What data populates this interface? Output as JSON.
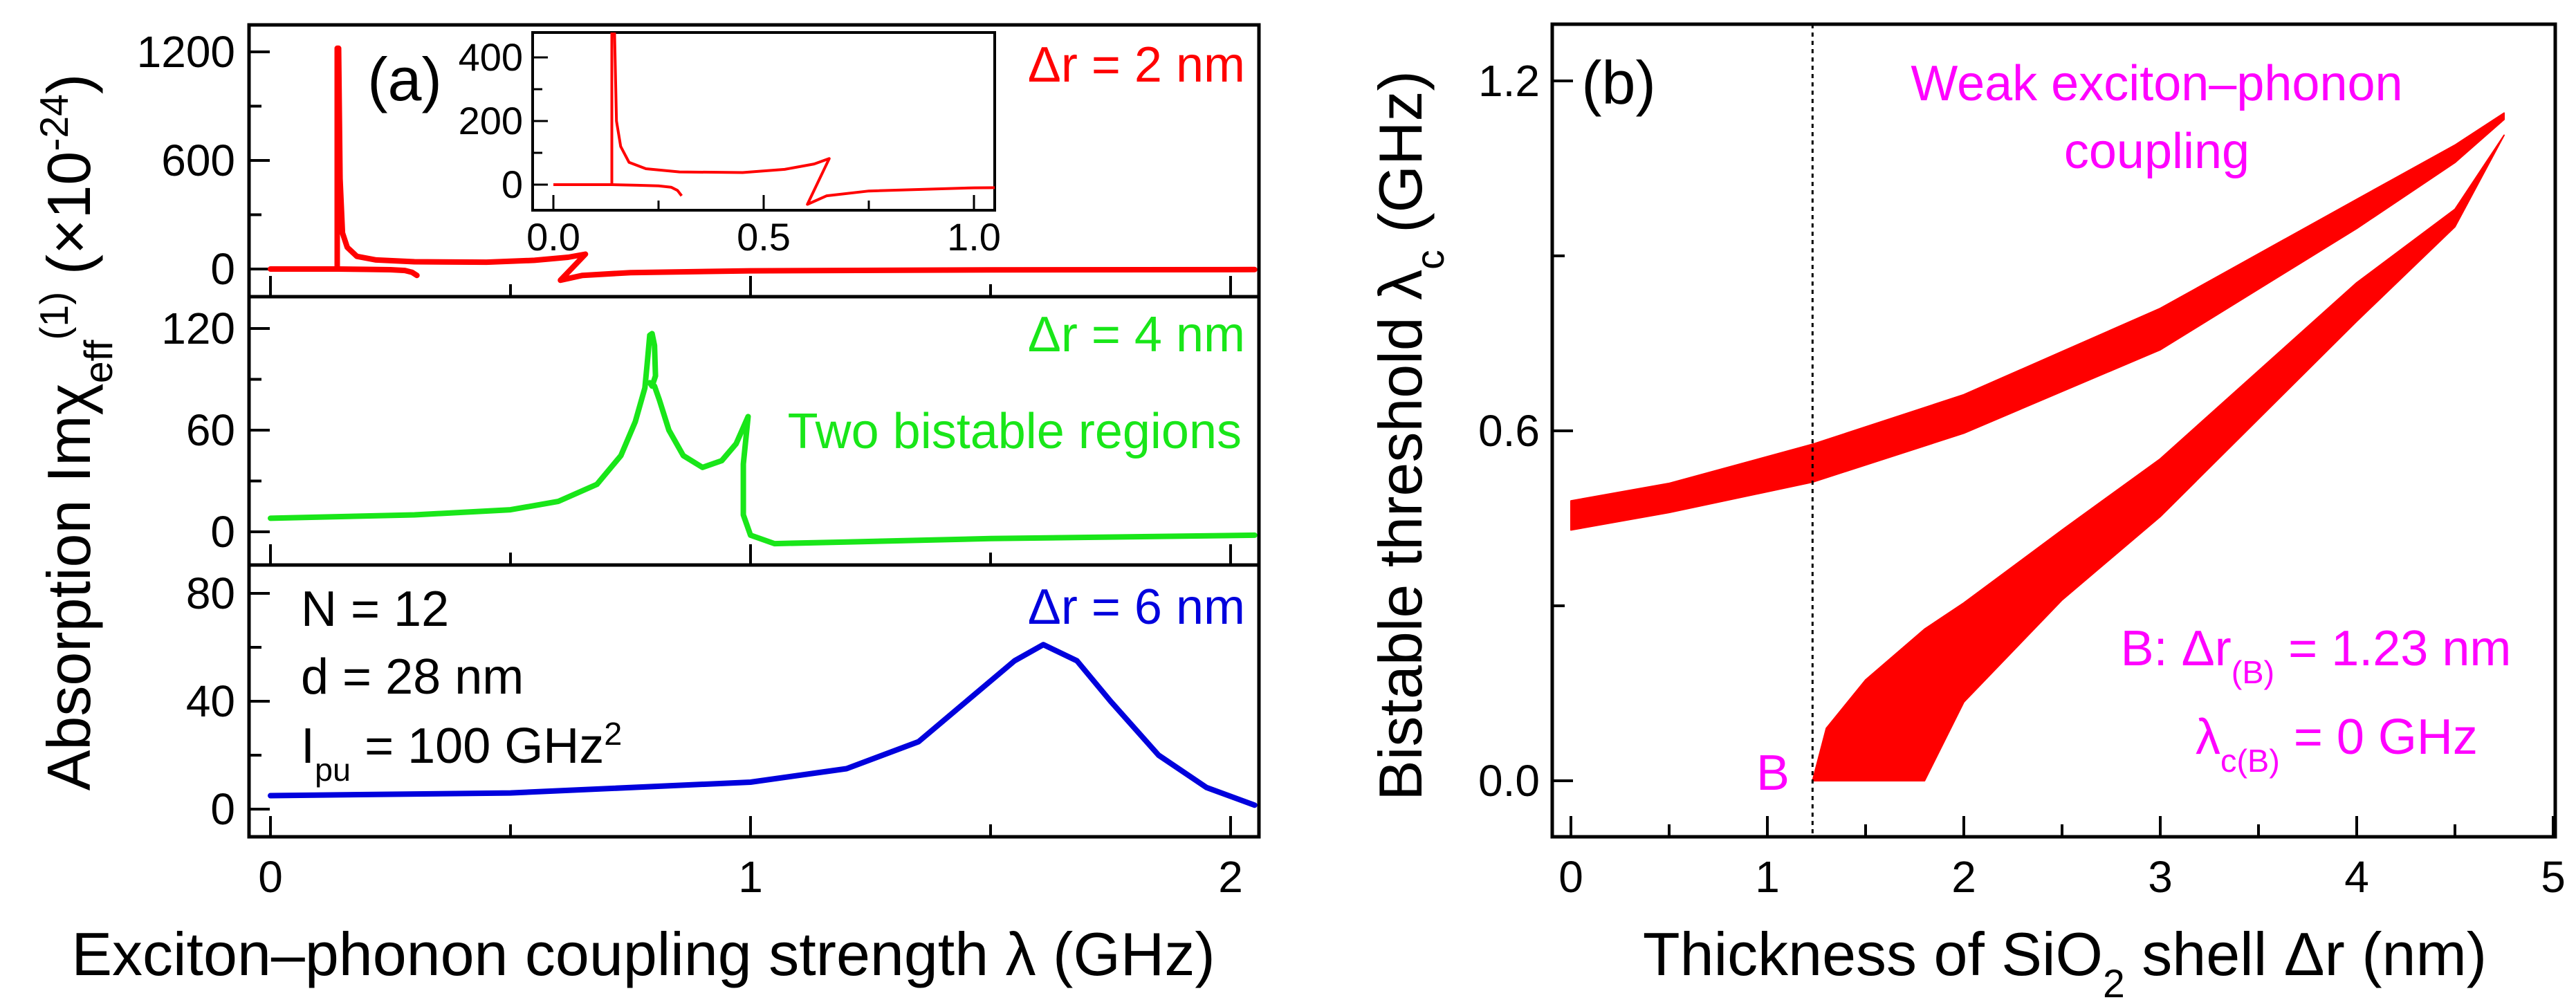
{
  "chart_data": [
    {
      "panel_label": "(a)",
      "type": "line",
      "xlabel": "Exciton–phonon coupling strength λ (GHz)",
      "ylabel": {
        "pre": "Absorption Im",
        "chi": "χ",
        "sub": "eff",
        "sup": "(1)",
        "mid": " (×10",
        "exp": "-24",
        "post": ")"
      },
      "xlim": [
        -0.05,
        2.05
      ],
      "xticks": [
        0,
        1,
        2
      ],
      "xtick_labels": [
        "0",
        "1",
        "2"
      ],
      "subplots": [
        {
          "label": "Δr = 2 nm",
          "color": "#ff0000",
          "ylim": [
            -180,
            1350
          ],
          "yticks": [
            0,
            600,
            1200
          ],
          "ytick_labels": [
            "0",
            "600",
            "1200"
          ],
          "series": [
            {
              "name": "lower branch",
              "x": [
                0,
                0.139,
                0.2,
                0.25,
                0.28,
                0.295,
                0.305
              ],
              "y": [
                0,
                0,
                -2,
                -4,
                -8,
                -18,
                -35
              ]
            },
            {
              "name": "upper branch",
              "x": [
                0.139,
                0.139,
                0.142,
                0.145,
                0.15,
                0.16,
                0.18,
                0.22,
                0.3,
                0.45,
                0.55,
                0.62,
                0.656,
                0.604,
                0.65,
                0.75,
                1.0,
                1.5,
                2.05
              ],
              "y": [
                0,
                1220,
                1220,
                500,
                200,
                120,
                70,
                50,
                40,
                38,
                48,
                65,
                82,
                -62,
                -35,
                -20,
                -10,
                -5,
                -3
              ]
            }
          ],
          "inset": {
            "xlim": [
              -0.05,
              1.05
            ],
            "ylim": [
              -80,
              460
            ],
            "xticks": [
              0,
              0.5,
              1.0
            ],
            "xtick_labels": [
              "0.0",
              "0.5",
              "1.0"
            ],
            "yticks": [
              0,
              200,
              400
            ],
            "ytick_labels": [
              "0",
              "200",
              "400"
            ]
          }
        },
        {
          "label": "Δr = 4 nm",
          "color": "#19e619",
          "note": "Two bistable regions",
          "ylim": [
            -20,
            140
          ],
          "yticks": [
            0,
            60,
            120
          ],
          "ytick_labels": [
            "0",
            "60",
            "120"
          ],
          "series": [
            {
              "name": "Δr = 4 nm",
              "x": [
                0,
                0.3,
                0.5,
                0.6,
                0.68,
                0.73,
                0.76,
                0.78,
                0.785,
                0.79,
                0.795,
                0.8,
                0.802,
                0.795,
                0.79,
                0.8,
                0.81,
                0.83,
                0.86,
                0.9,
                0.94,
                0.97,
                0.995,
                0.985,
                0.985,
                1.0,
                1.05,
                1.2,
                1.5,
                2.05
              ],
              "y": [
                8,
                10,
                13,
                18,
                28,
                45,
                65,
                85,
                100,
                116,
                117,
                110,
                92,
                86,
                88,
                86,
                78,
                60,
                45,
                38,
                42,
                52,
                68,
                40,
                10,
                -2,
                -7,
                -6,
                -4,
                -2
              ]
            }
          ]
        },
        {
          "label": "Δr = 6 nm",
          "color": "#0000dd",
          "ylim": [
            -10,
            92
          ],
          "yticks": [
            0,
            40,
            80
          ],
          "ytick_labels": [
            "0",
            "40",
            "80"
          ],
          "params": [
            "N = 12",
            "d = 28 nm"
          ],
          "param_ipu": {
            "pre": "I",
            "sub": "pu",
            "mid": " = 100 GHz",
            "sup": "2"
          },
          "series": [
            {
              "name": "Δr = 6 nm",
              "x": [
                0,
                0.5,
                1.0,
                1.2,
                1.35,
                1.45,
                1.55,
                1.61,
                1.68,
                1.75,
                1.85,
                1.95,
                2.05
              ],
              "y": [
                5,
                6,
                10,
                15,
                25,
                40,
                55,
                61,
                55,
                40,
                20,
                8,
                1.5
              ]
            }
          ]
        }
      ]
    },
    {
      "panel_label": "(b)",
      "type": "area",
      "xlabel": {
        "pre": "Thickness of SiO",
        "sub": "2",
        "post": " shell Δr (nm)"
      },
      "ylabel": {
        "pre": "Bistable threshold λ",
        "sub": "c",
        "post": " (GHz)"
      },
      "xlim": [
        -0.1,
        5.05
      ],
      "ylim": [
        -0.1,
        1.3
      ],
      "xticks": [
        0,
        1,
        2,
        3,
        4,
        5
      ],
      "xtick_labels": [
        "0",
        "1",
        "2",
        "3",
        "4",
        "5"
      ],
      "yticks": [
        0,
        0.6,
        1.2
      ],
      "ytick_labels": [
        "0.0",
        "0.6",
        "1.2"
      ],
      "color": "#ff0000",
      "annotation_color": "#ff00ff",
      "vline_x": 1.23,
      "bands": [
        {
          "name": "upper band",
          "x": [
            0,
            0.5,
            1.23,
            2,
            3,
            4,
            4.5,
            4.75
          ],
          "upper": [
            0.48,
            0.51,
            0.577,
            0.662,
            0.81,
            0.997,
            1.09,
            1.145
          ],
          "lower": [
            0.43,
            0.46,
            0.512,
            0.596,
            0.739,
            0.947,
            1.06,
            1.134
          ]
        },
        {
          "name": "lower band",
          "x": [
            1.23,
            1.3,
            1.5,
            1.8,
            2,
            2.5,
            3,
            4,
            4.5,
            4.75
          ],
          "upper": [
            0,
            0.09,
            0.173,
            0.26,
            0.305,
            0.43,
            0.552,
            0.854,
            0.98,
            1.107
          ],
          "lower": [
            0,
            0,
            0,
            0,
            0.135,
            0.31,
            0.453,
            0.788,
            0.95,
            1.107
          ]
        }
      ],
      "annotations": {
        "title1": "Weak exciton–phonon",
        "title2": "coupling",
        "point": "B",
        "b_line": {
          "pre": "B: Δr",
          "sub": "(B)",
          "post": " = 1.23 nm"
        },
        "l_line": {
          "pre": "λ",
          "sub": "c(B)",
          "post": " = 0 GHz"
        }
      }
    }
  ]
}
